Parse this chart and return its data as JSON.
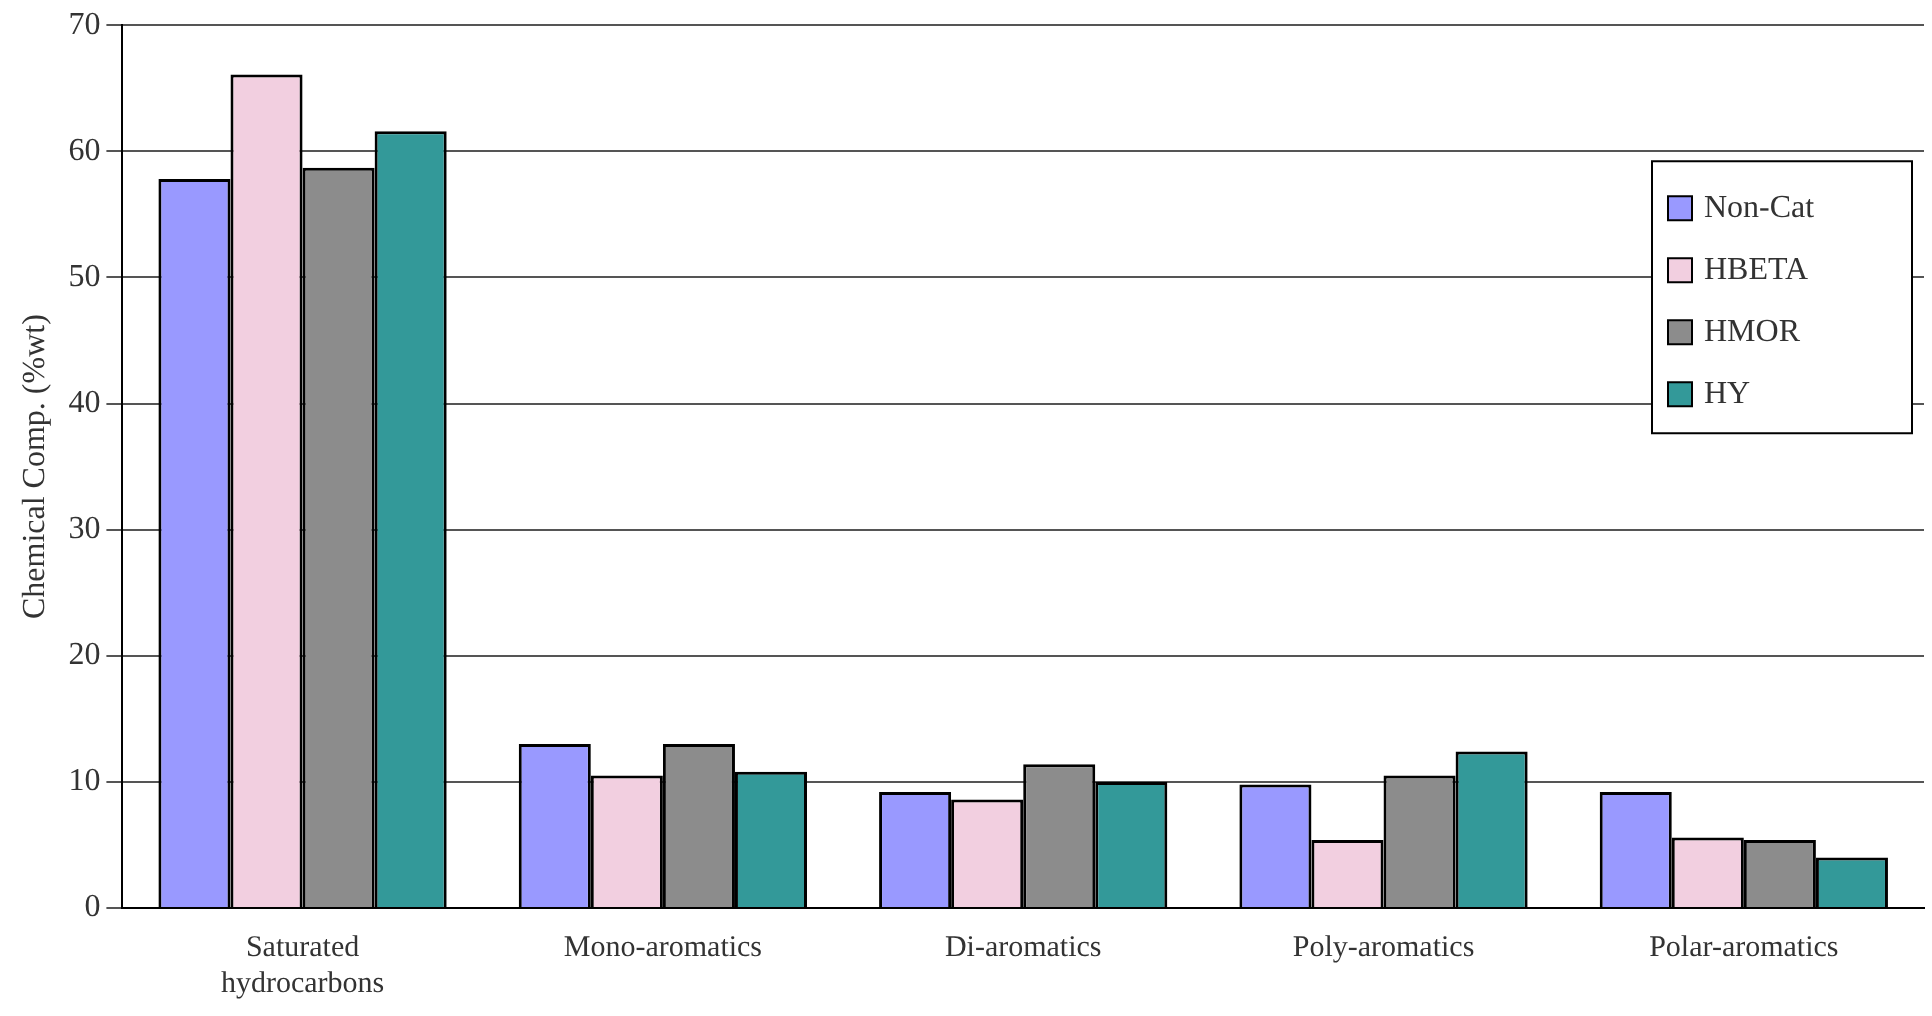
{
  "chart_data": {
    "type": "bar",
    "ylabel": "Chemical Comp. (%wt)",
    "categories": [
      "Saturated hydrocarbons",
      "Mono-aromatics",
      "Di-aromatics",
      "Poly-aromatics",
      "Polar-aromatics"
    ],
    "series": [
      {
        "name": "Non-Cat",
        "color": "#9999ff",
        "values": [
          57.8,
          13.0,
          9.2,
          9.8,
          9.2
        ]
      },
      {
        "name": "HBETA",
        "color": "#f2cfe0",
        "values": [
          66.1,
          10.5,
          8.6,
          5.4,
          5.6
        ]
      },
      {
        "name": "HMOR",
        "color": "#8c8c8c",
        "values": [
          58.7,
          13.0,
          11.4,
          10.5,
          5.4
        ]
      },
      {
        "name": "HY",
        "color": "#339999",
        "values": [
          61.6,
          10.8,
          10.0,
          12.4,
          4.0
        ]
      }
    ],
    "ylim": [
      0,
      70
    ],
    "yticks": [
      0,
      10,
      20,
      30,
      40,
      50,
      60,
      70
    ],
    "grid": "y",
    "legend": "top right"
  }
}
